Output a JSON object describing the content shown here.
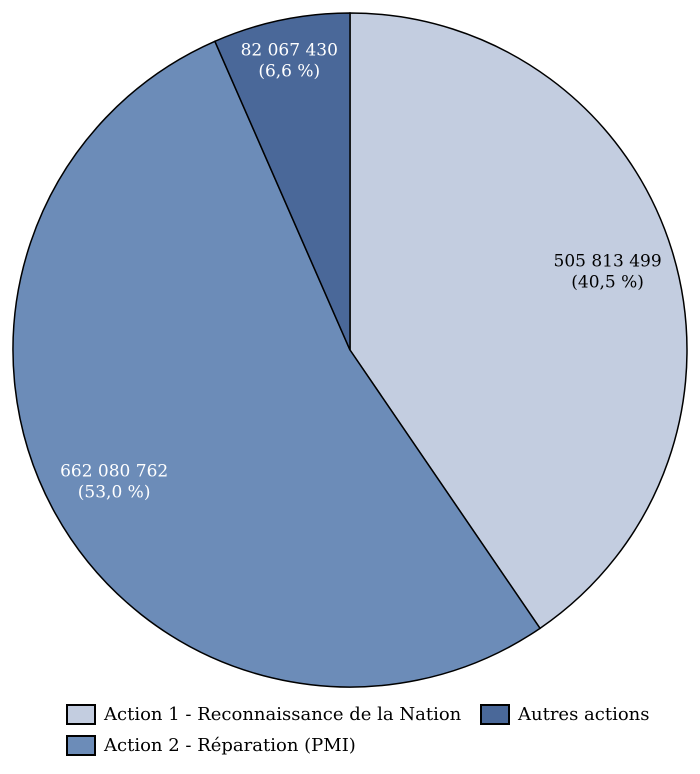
{
  "chart_data": {
    "type": "pie",
    "start_angle": "top",
    "direction": "clockwise",
    "slices": [
      {
        "name": "Action 1 - Reconnaissance de la Nation",
        "value": 505813499,
        "value_label": "505 813 499",
        "percent_label": "(40,5 %)",
        "color": "#c3cde0",
        "label_color": "#000000"
      },
      {
        "name": "Action 2 - Réparation (PMI)",
        "value": 662080762,
        "value_label": "662 080 762",
        "percent_label": "(53,0 %)",
        "color": "#6c8cb8",
        "label_color": "#ffffff"
      },
      {
        "name": "Autres actions",
        "value": 82067430,
        "value_label": "82 067 430",
        "percent_label": "(6,6 %)",
        "color": "#4a6899",
        "label_color": "#ffffff"
      }
    ],
    "legend_position": "bottom"
  }
}
